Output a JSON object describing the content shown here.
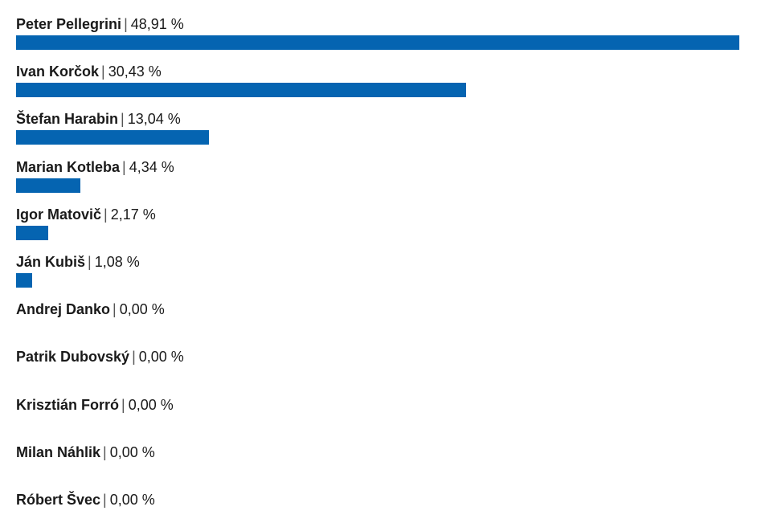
{
  "colors": {
    "bar": "#0564b1"
  },
  "chart_data": {
    "type": "bar",
    "orientation": "horizontal",
    "categories": [
      "Peter Pellegrini",
      "Ivan Korčok",
      "Štefan Harabin",
      "Marian Kotleba",
      "Igor Matovič",
      "Ján Kubiš",
      "Andrej Danko",
      "Patrik Dubovský",
      "Krisztián Forró",
      "Milan Náhlik",
      "Róbert Švec"
    ],
    "values": [
      48.91,
      30.43,
      13.04,
      4.34,
      2.17,
      1.08,
      0.0,
      0.0,
      0.0,
      0.0,
      0.0
    ],
    "value_labels": [
      "48,91 %",
      "30,43 %",
      "13,04 %",
      "4,34 %",
      "2,17 %",
      "1,08 %",
      "0,00 %",
      "0,00 %",
      "0,00 %",
      "0,00 %",
      "0,00 %"
    ],
    "separator": "|",
    "xlim": [
      0,
      48.91
    ],
    "grid": false,
    "legend": "none"
  }
}
